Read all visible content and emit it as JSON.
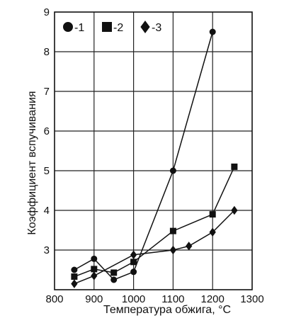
{
  "chart_data": {
    "type": "line",
    "xlabel": "Температура обжига, °C",
    "ylabel": "Коэффициент вспучивания",
    "xlim": [
      800,
      1300
    ],
    "ylim": [
      2,
      9
    ],
    "x_ticks": [
      800,
      900,
      1000,
      1100,
      1200,
      1300
    ],
    "y_ticks": [
      3,
      4,
      5,
      6,
      7,
      8,
      9
    ],
    "grid": true,
    "legend_position": "top-left",
    "series": [
      {
        "name": "-1",
        "marker": "circle",
        "points": [
          [
            850,
            2.5
          ],
          [
            900,
            2.78
          ],
          [
            950,
            2.25
          ],
          [
            1000,
            2.45
          ],
          [
            1100,
            5.0
          ],
          [
            1200,
            8.5
          ]
        ]
      },
      {
        "name": "-2",
        "marker": "square",
        "points": [
          [
            850,
            2.33
          ],
          [
            900,
            2.52
          ],
          [
            950,
            2.43
          ],
          [
            1000,
            2.7
          ],
          [
            1100,
            3.48
          ],
          [
            1200,
            3.9
          ],
          [
            1255,
            5.1
          ]
        ]
      },
      {
        "name": "-3",
        "marker": "diamond",
        "points": [
          [
            850,
            2.15
          ],
          [
            900,
            2.35
          ],
          [
            1000,
            2.88
          ],
          [
            1100,
            3.0
          ],
          [
            1140,
            3.1
          ],
          [
            1200,
            3.45
          ],
          [
            1255,
            4.0
          ]
        ]
      }
    ]
  }
}
